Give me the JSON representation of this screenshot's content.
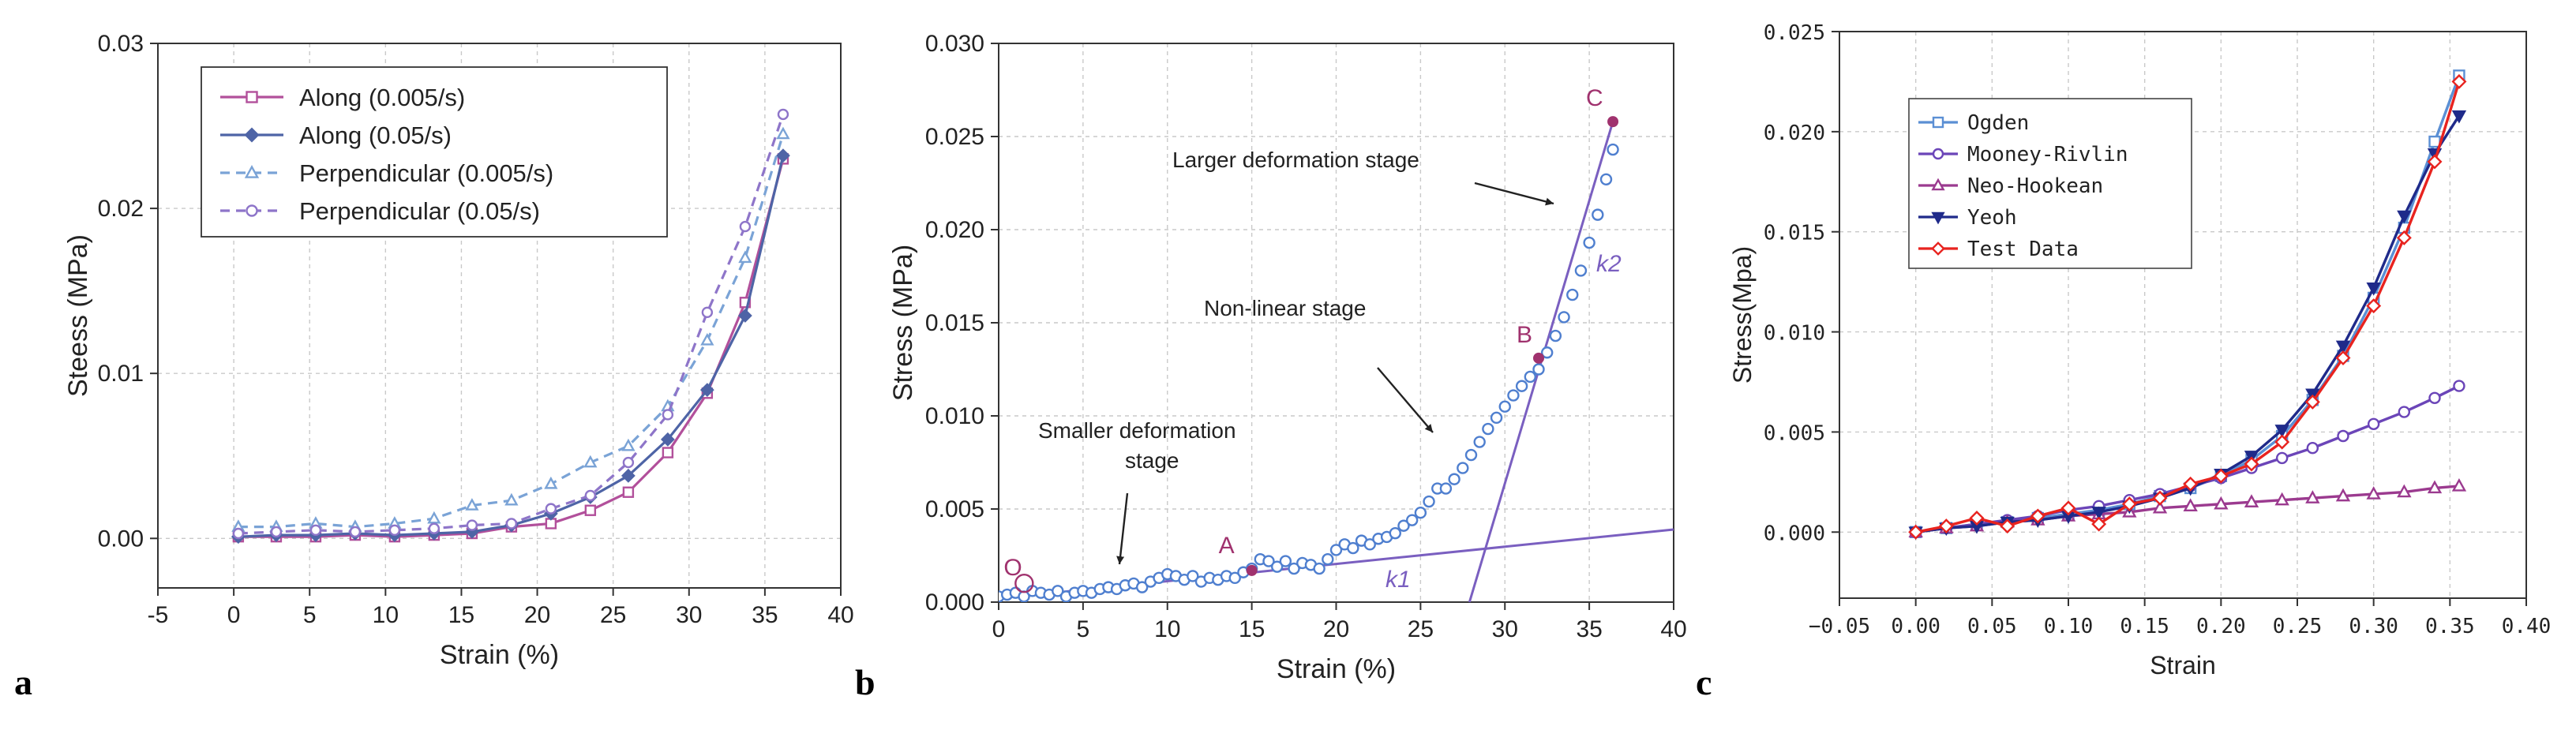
{
  "panels": [
    {
      "letter": "a",
      "chart_data": {
        "type": "line",
        "xlabel": "Strain (%)",
        "ylabel": "Steess (MPa)",
        "xlim": [
          -5,
          40
        ],
        "ylim": [
          -0.003,
          0.03
        ],
        "xticks": [
          -5,
          0,
          5,
          10,
          15,
          20,
          25,
          30,
          35,
          40
        ],
        "yticks": [
          0.0,
          0.01,
          0.02,
          0.03
        ],
        "ytick_labels": [
          "0.00",
          "0.01",
          "0.02",
          "0.03"
        ],
        "grid": true,
        "legend_position": "top-left",
        "series": [
          {
            "name": "Along (0.005/s)",
            "color": "#b2509b",
            "dash": false,
            "marker": "square",
            "x": [
              0.3,
              2.8,
              5.4,
              8.0,
              10.6,
              13.2,
              15.7,
              18.3,
              20.9,
              23.5,
              26.0,
              28.6,
              31.2,
              33.7,
              36.2
            ],
            "y": [
              0.0001,
              0.0001,
              0.0001,
              0.0002,
              0.0001,
              0.0002,
              0.0003,
              0.0007,
              0.0009,
              0.0017,
              0.0028,
              0.0052,
              0.0088,
              0.0143,
              0.023
            ]
          },
          {
            "name": "Along (0.05/s)",
            "color": "#4e64a6",
            "dash": false,
            "marker": "diamond",
            "x": [
              0.3,
              2.8,
              5.4,
              8.0,
              10.6,
              13.2,
              15.7,
              18.3,
              20.9,
              23.5,
              26.0,
              28.6,
              31.2,
              33.7,
              36.2
            ],
            "y": [
              0.0001,
              0.0002,
              0.0002,
              0.0003,
              0.0002,
              0.0003,
              0.0004,
              0.0008,
              0.0015,
              0.0025,
              0.0038,
              0.006,
              0.009,
              0.0135,
              0.0232
            ]
          },
          {
            "name": "Perpendicular (0.005/s)",
            "color": "#7aa3d6",
            "dash": true,
            "marker": "triangle",
            "x": [
              0.3,
              2.8,
              5.4,
              8.0,
              10.6,
              13.2,
              15.7,
              18.3,
              20.9,
              23.5,
              26.0,
              28.6,
              31.2,
              33.7,
              36.2
            ],
            "y": [
              0.0007,
              0.0007,
              0.0009,
              0.0007,
              0.0009,
              0.0012,
              0.002,
              0.0023,
              0.0033,
              0.0046,
              0.0056,
              0.008,
              0.012,
              0.017,
              0.0245
            ]
          },
          {
            "name": "Perpendicular (0.05/s)",
            "color": "#8e75c9",
            "dash": true,
            "marker": "circle",
            "x": [
              0.3,
              2.8,
              5.4,
              8.0,
              10.6,
              13.2,
              15.7,
              18.3,
              20.9,
              23.5,
              26.0,
              28.6,
              31.2,
              33.7,
              36.2
            ],
            "y": [
              0.0003,
              0.0004,
              0.0005,
              0.0004,
              0.0005,
              0.0006,
              0.0008,
              0.0009,
              0.0018,
              0.0026,
              0.0046,
              0.0075,
              0.0137,
              0.0189,
              0.0257
            ]
          }
        ]
      }
    },
    {
      "letter": "b",
      "chart_data": {
        "type": "scatter",
        "xlabel": "Strain (%)",
        "ylabel": "Stress (MPa)",
        "xlim": [
          0,
          40
        ],
        "ylim": [
          0,
          0.03
        ],
        "xticks": [
          0,
          5,
          10,
          15,
          20,
          25,
          30,
          35,
          40
        ],
        "yticks": [
          0.0,
          0.005,
          0.01,
          0.015,
          0.02,
          0.025,
          0.03
        ],
        "ytick_labels": [
          "0.000",
          "0.005",
          "0.010",
          "0.015",
          "0.020",
          "0.025",
          "0.030"
        ],
        "grid": true,
        "test_points": {
          "x": [
            0.0,
            0.5,
            1.0,
            1.5,
            2.0,
            2.5,
            3.0,
            3.5,
            4.0,
            4.5,
            5.0,
            5.5,
            6.0,
            6.5,
            7.0,
            7.5,
            8.0,
            8.5,
            9.0,
            9.5,
            10.0,
            10.5,
            11.0,
            11.5,
            12.0,
            12.5,
            13.0,
            13.5,
            14.0,
            14.5,
            15.0,
            15.5,
            16.0,
            16.5,
            17.0,
            17.5,
            18.0,
            18.5,
            19.0,
            19.5,
            20.0,
            20.5,
            21.0,
            21.5,
            22.0,
            22.5,
            23.0,
            23.5,
            24.0,
            24.5,
            25.0,
            25.5,
            26.0,
            26.5,
            27.0,
            27.5,
            28.0,
            28.5,
            29.0,
            29.5,
            30.0,
            30.5,
            31.0,
            31.5,
            32.0,
            32.5,
            33.0,
            33.5,
            34.0,
            34.5,
            35.0,
            35.5,
            36.0,
            36.4
          ],
          "y": [
            0.0003,
            0.0004,
            0.0005,
            0.0003,
            0.0006,
            0.0005,
            0.0004,
            0.0006,
            0.0003,
            0.0005,
            0.0006,
            0.0005,
            0.0007,
            0.0008,
            0.0007,
            0.0009,
            0.001,
            0.0008,
            0.0011,
            0.0013,
            0.0015,
            0.0014,
            0.0012,
            0.0014,
            0.0011,
            0.0013,
            0.0012,
            0.0014,
            0.0013,
            0.0016,
            0.0018,
            0.0023,
            0.0022,
            0.0019,
            0.0022,
            0.0018,
            0.0021,
            0.002,
            0.0018,
            0.0023,
            0.0028,
            0.0031,
            0.0029,
            0.0033,
            0.0031,
            0.0034,
            0.0035,
            0.0037,
            0.0041,
            0.0044,
            0.0048,
            0.0054,
            0.0061,
            0.0061,
            0.0066,
            0.0072,
            0.0079,
            0.0086,
            0.0093,
            0.0099,
            0.0105,
            0.0111,
            0.0116,
            0.0121,
            0.0125,
            0.0134,
            0.0143,
            0.0153,
            0.0165,
            0.0178,
            0.0193,
            0.0208,
            0.0227,
            0.0243
          ]
        },
        "fit_lines": [
          {
            "name": "k1",
            "x": [
              0,
              40
            ],
            "y": [
              0.0002,
              0.0039
            ]
          },
          {
            "name": "k2",
            "x": [
              27.9,
              36.4
            ],
            "y": [
              0,
              0.0258
            ]
          }
        ],
        "key_points": [
          {
            "label": "O",
            "x": 1.7,
            "y": 0.0005
          },
          {
            "label": "A",
            "x": 15.0,
            "y": 0.0017
          },
          {
            "label": "B",
            "x": 32.0,
            "y": 0.0131
          },
          {
            "label": "C",
            "x": 36.4,
            "y": 0.0258
          }
        ],
        "annotations": [
          {
            "text": "Larger deformation stage"
          },
          {
            "text": "Non-linear stage"
          },
          {
            "text": "Smaller deformation"
          },
          {
            "text": "stage"
          },
          {
            "text": "k1"
          },
          {
            "text": "k2"
          }
        ]
      }
    },
    {
      "letter": "c",
      "chart_data": {
        "type": "line",
        "xlabel": "Strain",
        "ylabel": "Stress(Mpa)",
        "xlim": [
          -0.05,
          0.4
        ],
        "ylim": [
          -0.0033,
          0.025
        ],
        "xticks": [
          -0.05,
          0.0,
          0.05,
          0.1,
          0.15,
          0.2,
          0.25,
          0.3,
          0.35,
          0.4
        ],
        "xtick_labels": [
          "−0.05",
          "0.00",
          "0.05",
          "0.10",
          "0.15",
          "0.20",
          "0.25",
          "0.30",
          "0.35",
          "0.40"
        ],
        "yticks": [
          0.0,
          0.005,
          0.01,
          0.015,
          0.02,
          0.025
        ],
        "ytick_labels": [
          "0.000",
          "0.005",
          "0.010",
          "0.015",
          "0.020",
          "0.025"
        ],
        "grid": true,
        "legend_position": "top-left",
        "series": [
          {
            "name": "Ogden",
            "color": "#5b8fd4",
            "marker": "square",
            "x": [
              0.0,
              0.02,
              0.04,
              0.06,
              0.08,
              0.1,
              0.12,
              0.14,
              0.16,
              0.18,
              0.2,
              0.22,
              0.24,
              0.26,
              0.28,
              0.3,
              0.32,
              0.34,
              0.356
            ],
            "y": [
              0.0,
              0.0002,
              0.0004,
              0.0005,
              0.0007,
              0.0009,
              0.0011,
              0.0014,
              0.0018,
              0.0022,
              0.0028,
              0.0036,
              0.0048,
              0.0066,
              0.0088,
              0.0117,
              0.0152,
              0.0195,
              0.0228
            ]
          },
          {
            "name": "Mooney-Rivlin",
            "color": "#6b45b8",
            "marker": "circle",
            "x": [
              0.0,
              0.02,
              0.04,
              0.06,
              0.08,
              0.1,
              0.12,
              0.14,
              0.16,
              0.18,
              0.2,
              0.22,
              0.24,
              0.26,
              0.28,
              0.3,
              0.32,
              0.34,
              0.356
            ],
            "y": [
              0.0,
              0.0002,
              0.0004,
              0.0006,
              0.0008,
              0.0011,
              0.0013,
              0.0016,
              0.0019,
              0.0023,
              0.0027,
              0.0032,
              0.0037,
              0.0042,
              0.0048,
              0.0054,
              0.006,
              0.0067,
              0.0073
            ]
          },
          {
            "name": "Neo-Hookean",
            "color": "#9b3a8f",
            "marker": "triangle",
            "x": [
              0.0,
              0.02,
              0.04,
              0.06,
              0.08,
              0.1,
              0.12,
              0.14,
              0.16,
              0.18,
              0.2,
              0.22,
              0.24,
              0.26,
              0.28,
              0.3,
              0.32,
              0.34,
              0.356
            ],
            "y": [
              0.0,
              0.0002,
              0.0003,
              0.0005,
              0.0006,
              0.0008,
              0.0009,
              0.001,
              0.0012,
              0.0013,
              0.0014,
              0.0015,
              0.0016,
              0.0017,
              0.0018,
              0.0019,
              0.002,
              0.0022,
              0.0023
            ]
          },
          {
            "name": "Yeoh",
            "color": "#1f2a8a",
            "marker": "inverted-triangle",
            "x": [
              0.0,
              0.02,
              0.04,
              0.06,
              0.08,
              0.1,
              0.12,
              0.14,
              0.16,
              0.18,
              0.2,
              0.22,
              0.24,
              0.26,
              0.28,
              0.3,
              0.32,
              0.34,
              0.356
            ],
            "y": [
              0.0,
              0.0002,
              0.0003,
              0.0005,
              0.0006,
              0.0008,
              0.001,
              0.0013,
              0.0017,
              0.0022,
              0.0029,
              0.0038,
              0.0051,
              0.0069,
              0.0093,
              0.0122,
              0.0158,
              0.0189,
              0.0208
            ]
          },
          {
            "name": "Test Data",
            "color": "#e8231f",
            "marker": "diamond",
            "x": [
              0.0,
              0.02,
              0.04,
              0.06,
              0.08,
              0.1,
              0.12,
              0.14,
              0.16,
              0.18,
              0.2,
              0.22,
              0.24,
              0.26,
              0.28,
              0.3,
              0.32,
              0.34,
              0.356
            ],
            "y": [
              0.0,
              0.0003,
              0.0007,
              0.0003,
              0.0008,
              0.0012,
              0.0004,
              0.0014,
              0.0017,
              0.0024,
              0.0028,
              0.0034,
              0.0045,
              0.0065,
              0.0087,
              0.0113,
              0.0147,
              0.0185,
              0.0225
            ]
          }
        ]
      }
    }
  ]
}
